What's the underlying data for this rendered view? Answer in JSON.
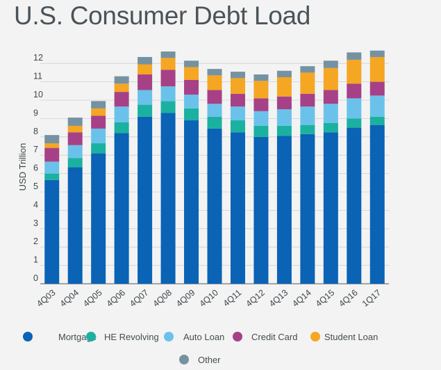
{
  "chart_data": {
    "type": "bar",
    "stacked": true,
    "title": "U.S. Consumer Debt Load",
    "ylabel": "USD Trillion",
    "xlabel": "",
    "ylim": [
      0,
      12.8
    ],
    "yticks": [
      "0",
      "1",
      "2",
      "3",
      "4",
      "5",
      "6",
      "7",
      "8",
      "9",
      "10",
      "11",
      "12"
    ],
    "grid": true,
    "legend_position": "bottom",
    "categories": [
      "4Q03",
      "4Q04",
      "4Q05",
      "4Q06",
      "4Q07",
      "4Q08",
      "4Q09",
      "4Q10",
      "4Q11",
      "4Q12",
      "4Q13",
      "4Q14",
      "4Q15",
      "4Q16",
      "1Q17"
    ],
    "series": [
      {
        "name": "Mortgage",
        "color": "#0a63b5",
        "values": [
          5.65,
          6.35,
          7.1,
          8.2,
          9.1,
          9.3,
          8.9,
          8.45,
          8.25,
          8.0,
          8.05,
          8.15,
          8.25,
          8.5,
          8.65
        ]
      },
      {
        "name": "HE Revolving",
        "color": "#1bb1a0",
        "values": [
          0.35,
          0.5,
          0.55,
          0.6,
          0.65,
          0.65,
          0.65,
          0.65,
          0.65,
          0.6,
          0.55,
          0.5,
          0.5,
          0.5,
          0.45
        ]
      },
      {
        "name": "Auto Loan",
        "color": "#6ac2ea",
        "values": [
          0.65,
          0.7,
          0.8,
          0.85,
          0.8,
          0.8,
          0.75,
          0.7,
          0.75,
          0.8,
          0.9,
          1.0,
          1.05,
          1.1,
          1.15
        ]
      },
      {
        "name": "Credit Card",
        "color": "#a64187",
        "values": [
          0.75,
          0.7,
          0.7,
          0.8,
          0.85,
          0.9,
          0.8,
          0.75,
          0.7,
          0.7,
          0.7,
          0.7,
          0.75,
          0.8,
          0.75
        ]
      },
      {
        "name": "Student Loan",
        "color": "#f5a623",
        "values": [
          0.25,
          0.35,
          0.4,
          0.45,
          0.55,
          0.65,
          0.7,
          0.8,
          0.85,
          0.95,
          1.05,
          1.15,
          1.2,
          1.3,
          1.35
        ]
      },
      {
        "name": "Other",
        "color": "#7592a2",
        "values": [
          0.45,
          0.45,
          0.4,
          0.4,
          0.4,
          0.35,
          0.35,
          0.35,
          0.35,
          0.35,
          0.35,
          0.35,
          0.4,
          0.4,
          0.35
        ]
      }
    ]
  }
}
